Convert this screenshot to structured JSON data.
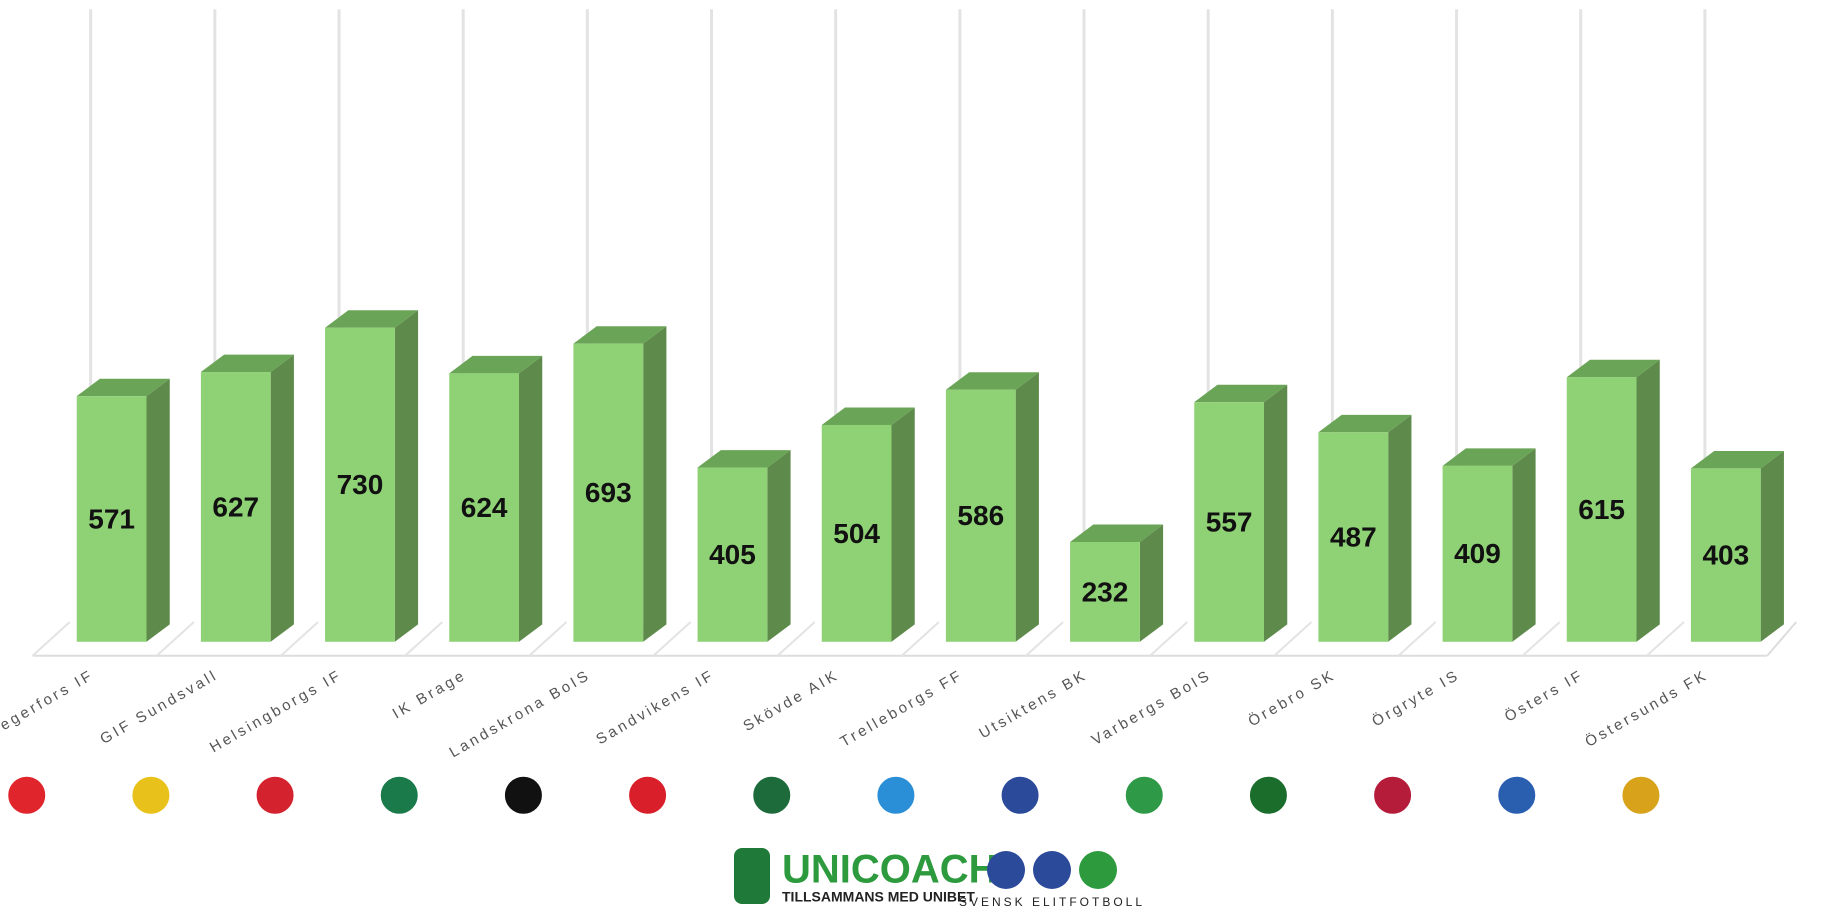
{
  "chart_data": {
    "type": "bar",
    "categories": [
      "Degerfors IF",
      "GIF Sundsvall",
      "Helsingborgs IF",
      "IK Brage",
      "Landskrona BoIS",
      "Sandvikens IF",
      "Skövde AIK",
      "Trelleborgs FF",
      "Utsiktens BK",
      "Varbergs BoIS",
      "Örebro SK",
      "Örgryte IS",
      "Östers IF",
      "Östersunds FK"
    ],
    "values": [
      571,
      627,
      730,
      624,
      693,
      405,
      504,
      586,
      232,
      557,
      487,
      409,
      615,
      403
    ],
    "color": "#8fd175",
    "ylim": [
      0,
      1400
    ]
  },
  "footer": {
    "brand": "UNICOACH",
    "tagline": "TILLSAMMANS MED UNIBET",
    "league": "SVENSK ELITFOTBOLL"
  }
}
